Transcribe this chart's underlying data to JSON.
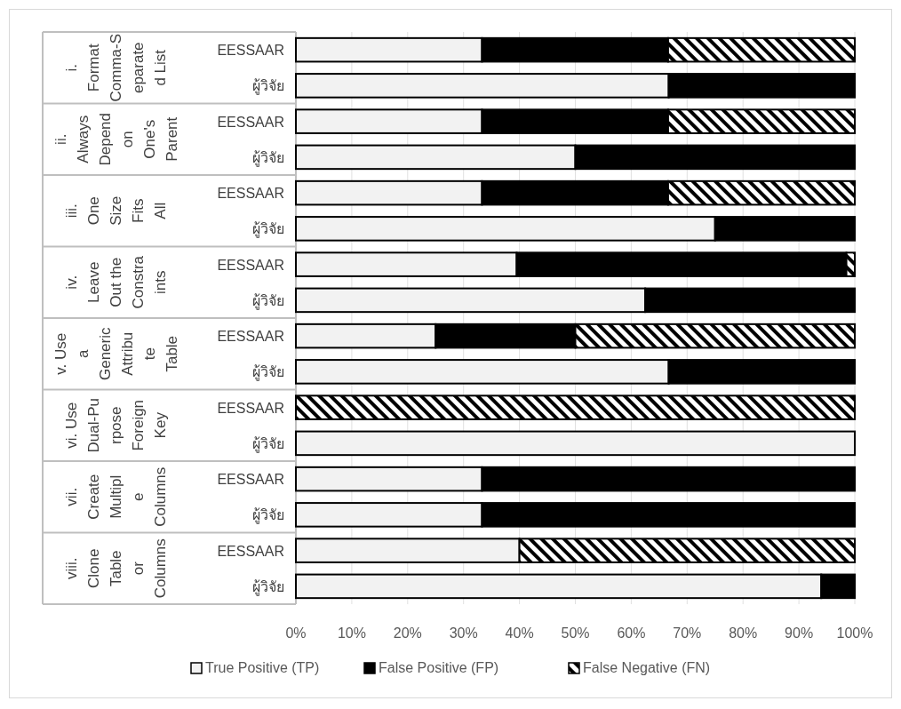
{
  "chart_data": {
    "type": "bar",
    "orientation": "horizontal",
    "stacked": true,
    "categories": [
      "EESSAAR",
      "ผู้วิจัย",
      "EESSAAR",
      "ผู้วิจัย",
      "EESSAAR",
      "ผู้วิจัย",
      "EESSAAR",
      "ผู้วิจัย",
      "EESSAAR",
      "ผู้วิจัย",
      "EESSAAR",
      "ผู้วิจัย",
      "EESSAAR",
      "ผู้วิจัย",
      "EESSAAR",
      "ผู้วิจัย"
    ],
    "series": [
      {
        "name": "True Positive (TP)",
        "color": "#f2f2f2",
        "values": [
          33.3,
          66.7,
          33.3,
          50,
          33.3,
          75,
          39.5,
          62.5,
          25,
          66.7,
          0,
          100,
          33.3,
          33.3,
          40,
          94
        ]
      },
      {
        "name": "False Positive (FP)",
        "color": "#000000",
        "values": [
          33.3,
          33.3,
          33.3,
          50,
          33.3,
          25,
          59,
          37.5,
          25,
          33.3,
          0,
          0,
          66.7,
          66.7,
          0,
          6
        ]
      },
      {
        "name": "False Negative (FN)",
        "color": "#000000",
        "values": [
          33.4,
          0,
          33.4,
          0,
          33.4,
          0,
          1.5,
          0,
          50,
          0,
          100,
          0,
          0,
          0,
          60,
          0
        ]
      }
    ],
    "annotations": [
      "i. Format Comma-Separated List",
      "ii. Always Depend on One's Parent",
      "iii. One Size Fits All",
      "iv. Leave Out the Constraints",
      "v. Use a Generic Attribute Table",
      "vi. Use Dual-Purpose Foreign Key",
      "vii. Create Multiple Columns",
      "viii. Clone Table or Columns"
    ],
    "xlim": [
      0,
      100
    ],
    "xticks": [
      {
        "value": 0,
        "label": "0%"
      },
      {
        "value": 10,
        "label": "10%"
      },
      {
        "value": 20,
        "label": "20%"
      },
      {
        "value": 30,
        "label": "30%"
      },
      {
        "value": 40,
        "label": "40%"
      },
      {
        "value": 50,
        "label": "50%"
      },
      {
        "value": 60,
        "label": "60%"
      },
      {
        "value": 70,
        "label": "70%"
      },
      {
        "value": 80,
        "label": "80%"
      },
      {
        "value": 90,
        "label": "90%"
      },
      {
        "value": 100,
        "label": "100%"
      }
    ],
    "grid": "x",
    "legend": "bottom"
  }
}
